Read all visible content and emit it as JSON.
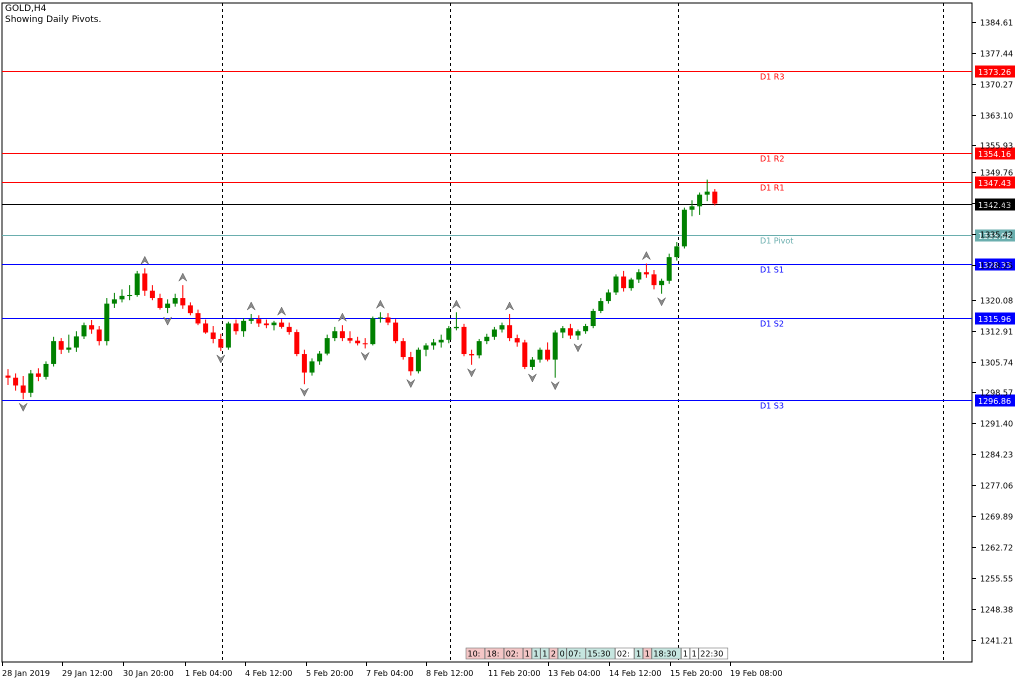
{
  "header": {
    "symbol": "GOLD,H4",
    "indicator_note": "Showing Daily Pivots."
  },
  "colors": {
    "background": "#ffffff",
    "bull_candle": "#008000",
    "bear_candle": "#ff0000",
    "resistance": "#ff0000",
    "support": "#0000ff",
    "pivot": "#6aaeae",
    "current_price": "#000000",
    "grid": "#000000"
  },
  "chart_data": {
    "type": "candlestick",
    "title": "GOLD,H4",
    "subtitle": "Showing Daily Pivots.",
    "ylim": [
      1236.0,
      1389.0
    ],
    "y_ticks": [
      "1384.61",
      "1377.44",
      "1370.27",
      "1363.10",
      "1355.93",
      "1349.76",
      "1342.59",
      "1335.42",
      "1328.25",
      "1320.08",
      "1312.91",
      "1305.74",
      "1298.57",
      "1291.40",
      "1284.23",
      "1277.06",
      "1269.89",
      "1262.72",
      "1255.55",
      "1248.38",
      "1241.21"
    ],
    "x_labels": [
      "28 Jan 2019",
      "29 Jan 12:00",
      "30 Jan 20:00",
      "1 Feb 04:00",
      "4 Feb 12:00",
      "5 Feb 20:00",
      "7 Feb 04:00",
      "8 Feb 12:00",
      "11 Feb 20:00",
      "13 Feb 04:00",
      "14 Feb 12:00",
      "15 Feb 20:00",
      "19 Feb 08:00"
    ],
    "day_separators": [
      1,
      11,
      21,
      31,
      41,
      51,
      61
    ],
    "pivot_levels": [
      {
        "name": "D1 R3",
        "value": 1373.26,
        "label": "1373.26",
        "kind": "resistance"
      },
      {
        "name": "D1 R2",
        "value": 1354.16,
        "label": "1354.16",
        "kind": "resistance"
      },
      {
        "name": "D1 R1",
        "value": 1347.43,
        "label": "1347.43",
        "kind": "resistance"
      },
      {
        "name": "D1 Pivot",
        "value": 1335.06,
        "label": "1335.06",
        "kind": "pivot"
      },
      {
        "name": "D1 S1",
        "value": 1328.33,
        "label": "1328.33",
        "kind": "support"
      },
      {
        "name": "D1 S2",
        "value": 1315.96,
        "label": "1315.96",
        "kind": "support"
      },
      {
        "name": "D1 S3",
        "value": 1296.86,
        "label": "1296.86",
        "kind": "support"
      }
    ],
    "current_price": {
      "value": 1342.43,
      "label": "1342.43"
    },
    "candles": [
      [
        1302.5,
        1304.0,
        1300.3,
        1302.0
      ],
      [
        1302.0,
        1303.0,
        1299.0,
        1300.2
      ],
      [
        1300.2,
        1302.4,
        1297.0,
        1298.5
      ],
      [
        1298.5,
        1303.8,
        1297.5,
        1303.0
      ],
      [
        1303.0,
        1304.2,
        1301.2,
        1302.2
      ],
      [
        1302.2,
        1305.8,
        1301.6,
        1305.2
      ],
      [
        1305.2,
        1311.5,
        1304.6,
        1310.5
      ],
      [
        1310.5,
        1311.2,
        1307.5,
        1308.5
      ],
      [
        1308.5,
        1312.0,
        1307.8,
        1309.0
      ],
      [
        1309.0,
        1312.8,
        1308.0,
        1311.6
      ],
      [
        1311.6,
        1314.8,
        1311.0,
        1314.2
      ],
      [
        1314.2,
        1315.4,
        1312.2,
        1313.2
      ],
      [
        1313.2,
        1314.0,
        1309.5,
        1310.5
      ],
      [
        1310.5,
        1320.5,
        1309.5,
        1319.2
      ],
      [
        1319.2,
        1321.7,
        1318.2,
        1320.2
      ],
      [
        1320.2,
        1322.5,
        1319.5,
        1321.0
      ],
      [
        1321.0,
        1323.5,
        1320.0,
        1321.2
      ],
      [
        1321.2,
        1326.8,
        1320.8,
        1326.2
      ],
      [
        1326.2,
        1327.4,
        1321.0,
        1322.2
      ],
      [
        1322.2,
        1323.5,
        1320.0,
        1320.5
      ],
      [
        1320.5,
        1321.5,
        1317.8,
        1318.2
      ],
      [
        1318.2,
        1320.2,
        1317.0,
        1319.2
      ],
      [
        1319.2,
        1321.5,
        1318.5,
        1320.5
      ],
      [
        1320.5,
        1323.5,
        1318.0,
        1318.8
      ],
      [
        1318.8,
        1319.5,
        1316.5,
        1317.0
      ],
      [
        1317.0,
        1317.8,
        1314.2,
        1314.6
      ],
      [
        1314.6,
        1315.5,
        1312.2,
        1312.5
      ],
      [
        1312.5,
        1314.0,
        1310.0,
        1311.0
      ],
      [
        1311.0,
        1312.2,
        1308.2,
        1309.0
      ],
      [
        1309.0,
        1315.0,
        1308.5,
        1314.6
      ],
      [
        1314.6,
        1315.5,
        1312.0,
        1312.8
      ],
      [
        1312.8,
        1315.8,
        1311.5,
        1315.2
      ],
      [
        1315.2,
        1316.8,
        1314.5,
        1315.6
      ],
      [
        1315.6,
        1316.5,
        1313.8,
        1314.6
      ],
      [
        1314.6,
        1315.5,
        1313.5,
        1314.2
      ],
      [
        1314.2,
        1315.2,
        1313.0,
        1314.8
      ],
      [
        1314.8,
        1315.6,
        1313.4,
        1313.8
      ],
      [
        1313.8,
        1314.8,
        1312.0,
        1312.6
      ],
      [
        1312.6,
        1313.2,
        1307.0,
        1307.5
      ],
      [
        1307.5,
        1308.5,
        1300.5,
        1303.2
      ],
      [
        1303.2,
        1306.5,
        1302.5,
        1305.8
      ],
      [
        1305.8,
        1308.2,
        1305.0,
        1307.6
      ],
      [
        1307.6,
        1312.0,
        1307.2,
        1311.2
      ],
      [
        1311.2,
        1313.8,
        1310.5,
        1312.8
      ],
      [
        1312.8,
        1314.2,
        1310.5,
        1311.2
      ],
      [
        1311.2,
        1312.8,
        1310.0,
        1310.6
      ],
      [
        1310.6,
        1311.5,
        1309.5,
        1310.0
      ],
      [
        1310.0,
        1311.2,
        1308.8,
        1309.8
      ],
      [
        1309.8,
        1316.2,
        1309.5,
        1315.8
      ],
      [
        1315.8,
        1317.2,
        1314.8,
        1316.0
      ],
      [
        1316.0,
        1317.0,
        1314.2,
        1314.8
      ],
      [
        1314.8,
        1315.6,
        1310.0,
        1310.5
      ],
      [
        1310.5,
        1311.2,
        1306.2,
        1306.8
      ],
      [
        1306.8,
        1308.0,
        1302.5,
        1303.5
      ],
      [
        1303.5,
        1309.0,
        1303.0,
        1308.5
      ],
      [
        1308.5,
        1310.0,
        1307.0,
        1309.5
      ],
      [
        1309.5,
        1311.0,
        1308.5,
        1310.2
      ],
      [
        1310.2,
        1312.0,
        1309.0,
        1310.8
      ],
      [
        1310.8,
        1314.0,
        1310.0,
        1313.5
      ],
      [
        1313.5,
        1317.2,
        1313.0,
        1313.8
      ],
      [
        1313.8,
        1314.5,
        1307.0,
        1307.5
      ],
      [
        1307.5,
        1308.5,
        1305.0,
        1307.2
      ],
      [
        1307.2,
        1311.0,
        1306.5,
        1310.5
      ],
      [
        1310.5,
        1312.2,
        1309.8,
        1311.5
      ],
      [
        1311.5,
        1313.8,
        1310.8,
        1313.2
      ],
      [
        1313.2,
        1314.8,
        1312.5,
        1314.2
      ],
      [
        1314.2,
        1316.8,
        1310.5,
        1311.2
      ],
      [
        1311.2,
        1312.0,
        1309.2,
        1310.2
      ],
      [
        1310.2,
        1310.8,
        1304.0,
        1304.5
      ],
      [
        1304.5,
        1306.8,
        1303.8,
        1306.2
      ],
      [
        1306.2,
        1309.0,
        1305.5,
        1308.5
      ],
      [
        1308.5,
        1310.2,
        1305.8,
        1306.2
      ],
      [
        1306.2,
        1313.0,
        1302.0,
        1312.5
      ],
      [
        1312.5,
        1314.0,
        1311.2,
        1313.5
      ],
      [
        1313.5,
        1314.5,
        1311.0,
        1311.8
      ],
      [
        1311.8,
        1313.2,
        1310.8,
        1312.8
      ],
      [
        1312.8,
        1314.5,
        1312.2,
        1314.0
      ],
      [
        1314.0,
        1318.0,
        1313.5,
        1317.5
      ],
      [
        1317.5,
        1320.5,
        1317.0,
        1319.8
      ],
      [
        1319.8,
        1322.5,
        1319.2,
        1321.8
      ],
      [
        1321.8,
        1326.0,
        1321.2,
        1325.5
      ],
      [
        1325.5,
        1326.8,
        1322.0,
        1322.8
      ],
      [
        1322.8,
        1325.2,
        1322.2,
        1324.8
      ],
      [
        1324.8,
        1327.2,
        1324.0,
        1326.5
      ],
      [
        1326.5,
        1328.5,
        1325.2,
        1326.0
      ],
      [
        1326.0,
        1327.0,
        1322.5,
        1323.5
      ],
      [
        1323.5,
        1325.0,
        1321.5,
        1324.5
      ],
      [
        1324.5,
        1330.8,
        1323.8,
        1330.0
      ],
      [
        1330.0,
        1333.5,
        1329.2,
        1332.5
      ],
      [
        1332.5,
        1341.5,
        1332.0,
        1341.0
      ],
      [
        1341.0,
        1343.2,
        1339.5,
        1341.8
      ],
      [
        1341.8,
        1345.0,
        1339.8,
        1344.5
      ],
      [
        1344.5,
        1348.0,
        1343.0,
        1345.2
      ],
      [
        1345.2,
        1345.8,
        1342.0,
        1342.43
      ]
    ]
  },
  "timer_segments": [
    {
      "text": "10:",
      "bg": "#f4c6c6"
    },
    {
      "text": "18:",
      "bg": "#f4c6c6"
    },
    {
      "text": "02:",
      "bg": "#f4c6c6"
    },
    {
      "text": "1",
      "bg": "#f4c6c6"
    },
    {
      "text": "1",
      "bg": "#c6e6e0"
    },
    {
      "text": "1",
      "bg": "#c6e6e0"
    },
    {
      "text": "2",
      "bg": "#f4c6c6"
    },
    {
      "text": "0",
      "bg": "#c6e6e0"
    },
    {
      "text": "07:",
      "bg": "#c6e6e0"
    },
    {
      "text": "15:30",
      "bg": "#c6e6e0"
    },
    {
      "text": "02:",
      "bg": "#ffffff"
    },
    {
      "text": "1",
      "bg": "#c6e6e0"
    },
    {
      "text": "1",
      "bg": "#f4c6c6"
    },
    {
      "text": "18:30",
      "bg": "#c6e6e0"
    },
    {
      "text": "1",
      "bg": "#ffffff"
    },
    {
      "text": "1",
      "bg": "#ffffff"
    },
    {
      "text": "22:30",
      "bg": "#ffffff"
    }
  ]
}
